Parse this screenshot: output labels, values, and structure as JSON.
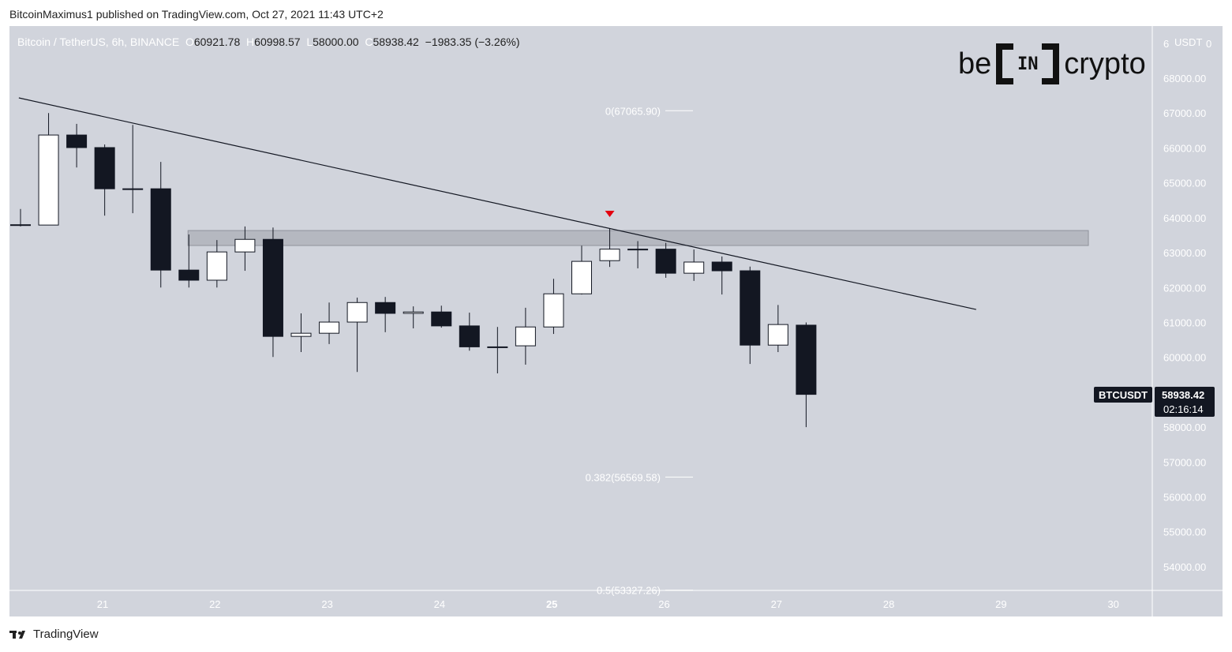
{
  "header": {
    "published": "BitcoinMaximus1 published on TradingView.com, Oct 27, 2021 11:43 UTC+2"
  },
  "legend": {
    "symbol": "Bitcoin / TetherUS, 6h, BINANCE",
    "o_label": "O",
    "o": "60921.78",
    "h_label": "H",
    "h": "60998.57",
    "l_label": "L",
    "l": "58000.00",
    "c_label": "C",
    "c": "58938.42",
    "change": "−1983.35 (−3.26%)"
  },
  "logo": {
    "left": "be",
    "mid": "IN",
    "right": "crypto"
  },
  "price_axis": {
    "currency": "USDT",
    "top_partial": "6",
    "top_partial_right": "0"
  },
  "price_tag": {
    "symbol": "BTCUSDT",
    "price": "58938.42",
    "countdown": "02:16:14"
  },
  "footer": {
    "brand": "TradingView"
  },
  "colors": {
    "background": "#d1d4dc",
    "up": "#ffffff",
    "down": "#131722",
    "marker": "#e3000f",
    "zone": "#b2b5be"
  },
  "chart_data": {
    "type": "candlestick",
    "interval": "6h",
    "ylim": [
      53300,
      69100
    ],
    "y_ticks": [
      "68000.00",
      "67000.00",
      "66000.00",
      "65000.00",
      "64000.00",
      "63000.00",
      "62000.00",
      "61000.00",
      "60000.00",
      "59000.00",
      "58000.00",
      "57000.00",
      "56000.00",
      "55000.00",
      "54000.00"
    ],
    "x_ticks": [
      {
        "label": "21",
        "bold": false
      },
      {
        "label": "22",
        "bold": false
      },
      {
        "label": "23",
        "bold": false
      },
      {
        "label": "24",
        "bold": false
      },
      {
        "label": "25",
        "bold": true
      },
      {
        "label": "26",
        "bold": false
      },
      {
        "label": "27",
        "bold": false
      },
      {
        "label": "28",
        "bold": false
      },
      {
        "label": "29",
        "bold": false
      },
      {
        "label": "30",
        "bold": false
      }
    ],
    "candles": [
      [
        63800,
        63800,
        64250,
        63750
      ],
      [
        63790,
        66370,
        67000,
        63790
      ],
      [
        66370,
        66010,
        66690,
        65440
      ],
      [
        66010,
        64830,
        66100,
        64060
      ],
      [
        64830,
        64830,
        66660,
        64130
      ],
      [
        64830,
        62500,
        65600,
        62000
      ],
      [
        62500,
        62210,
        63520,
        62000
      ],
      [
        62210,
        63020,
        63360,
        62000
      ],
      [
        63020,
        63380,
        63750,
        62480
      ],
      [
        63380,
        60600,
        63720,
        60010
      ],
      [
        60600,
        60690,
        61260,
        60150
      ],
      [
        60690,
        61010,
        61570,
        60380
      ],
      [
        61010,
        61570,
        61710,
        59580
      ],
      [
        61570,
        61260,
        61730,
        60720
      ],
      [
        61260,
        61300,
        61460,
        60830
      ],
      [
        61300,
        60900,
        61480,
        60850
      ],
      [
        60900,
        60300,
        61280,
        60190
      ],
      [
        60300,
        60300,
        60870,
        59540
      ],
      [
        60330,
        60870,
        61420,
        59790
      ],
      [
        60870,
        61820,
        62250,
        60670
      ],
      [
        61820,
        62750,
        63200,
        61800
      ],
      [
        62770,
        63100,
        63700,
        62590
      ],
      [
        63100,
        63100,
        63330,
        62550
      ],
      [
        63100,
        62410,
        63280,
        62280
      ],
      [
        62410,
        62730,
        63090,
        62190
      ],
      [
        62730,
        62480,
        62890,
        61800
      ],
      [
        62480,
        60350,
        62600,
        59810
      ],
      [
        60350,
        60940,
        61500,
        60150
      ],
      [
        60921.78,
        58938.42,
        60998.57,
        58000
      ]
    ],
    "trendline": {
      "from": {
        "candle": -0.06,
        "price": 67434
      },
      "to": {
        "candle": 34.06,
        "price": 61371
      }
    },
    "resistance_zone": {
      "from_candle": 5.97,
      "to_candle": 38.06,
      "low": 63204,
      "high": 63633
    },
    "marker": {
      "type": "down-triangle",
      "candle": 21
    },
    "fib_levels": [
      {
        "label": "0(67065.90)",
        "price": 67065.9
      },
      {
        "label": "0.382(56569.58)",
        "price": 56569.58
      },
      {
        "label": "0.5(53327.26)",
        "price": 53327.26
      }
    ]
  }
}
